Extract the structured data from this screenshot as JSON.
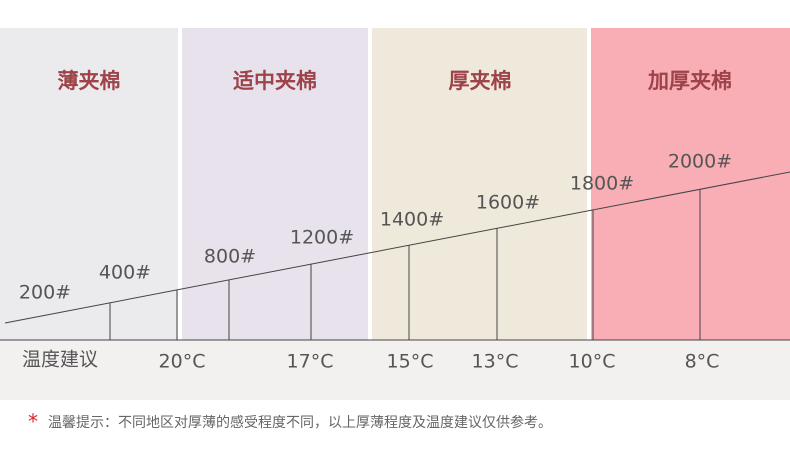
{
  "header": {
    "columns": [
      "薄夹棉",
      "适中夹棉",
      "厚夹棉",
      "加厚夹棉"
    ]
  },
  "weights": [
    "200#",
    "400#",
    "800#",
    "1200#",
    "1400#",
    "1600#",
    "1800#",
    "2000#"
  ],
  "temperature": {
    "label": "温度建议",
    "values": [
      "20°C",
      "17°C",
      "15°C",
      "13°C",
      "10°C",
      "8°C"
    ]
  },
  "footnote": {
    "mark": "*",
    "text": "温馨提示：不同地区对厚薄的感受程度不同，以上厚薄程度及温度建议仅供参考。"
  }
}
